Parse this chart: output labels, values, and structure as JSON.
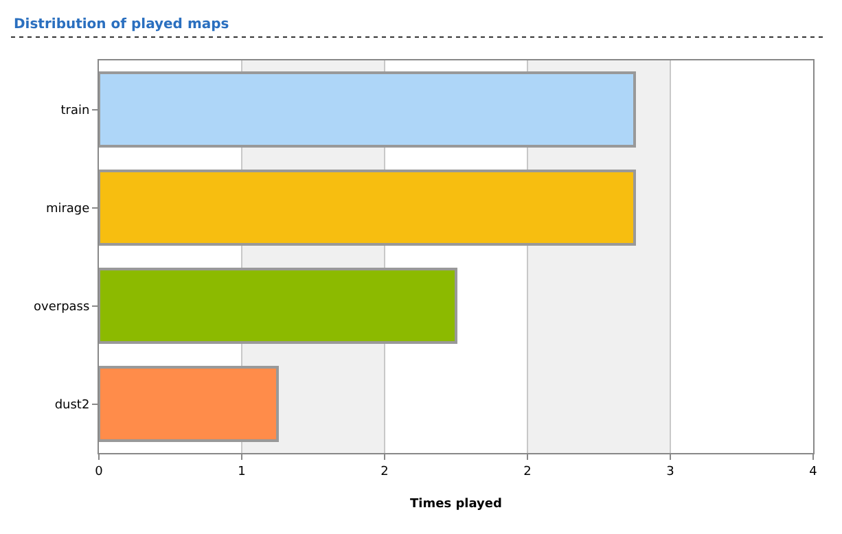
{
  "chart_data": {
    "type": "bar",
    "orientation": "horizontal",
    "title": "Distribution of played maps",
    "xlabel": "Times played",
    "categories": [
      "train",
      "mirage",
      "overpass",
      "dust2"
    ],
    "values": [
      3,
      3,
      2,
      1
    ],
    "colors": [
      "#aed6f8",
      "#f7be10",
      "#8cba00",
      "#ff8c4a"
    ],
    "xlim": [
      0,
      4
    ],
    "xticks": [
      0,
      {
        "value": 0.8,
        "label": "1"
      },
      {
        "value": 1.6,
        "label": "2"
      },
      {
        "value": 2.4,
        "label": "2"
      },
      {
        "value": 3.2,
        "label": "3"
      },
      4
    ],
    "bands": [
      {
        "axis": "x",
        "from": 0.8,
        "to": 1.6,
        "color": "#f0f0f0"
      },
      {
        "axis": "x",
        "from": 2.4,
        "to": 3.2,
        "color": "#f0f0f0"
      }
    ],
    "grid": "x"
  }
}
